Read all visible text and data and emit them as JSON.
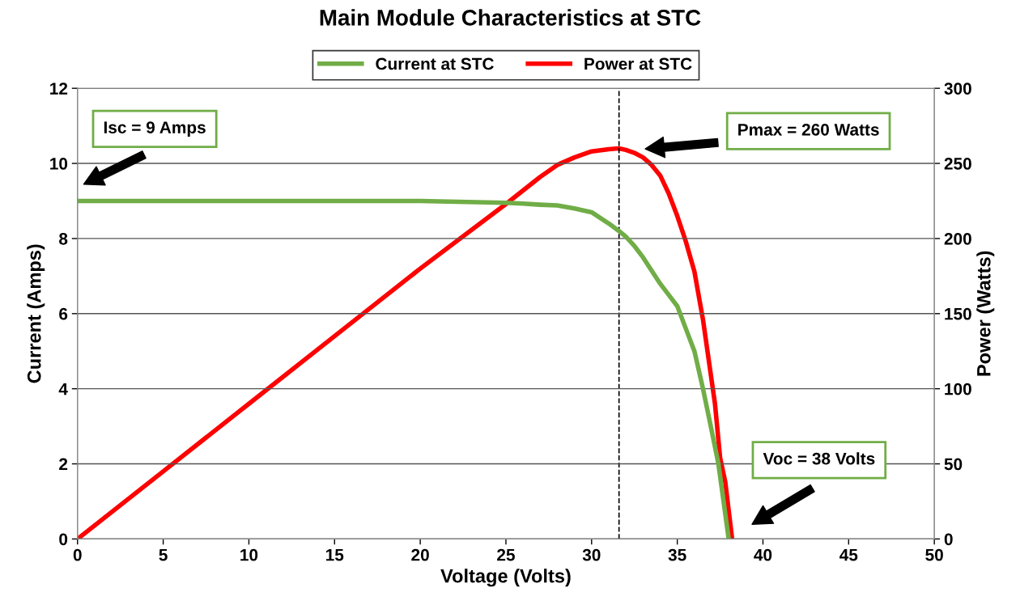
{
  "chart_data": {
    "type": "line",
    "title": "Main Module Characteristics at STC",
    "xlabel": "Voltage (Volts)",
    "ylabel": "Current (Amps)",
    "y2label": "Power (Watts)",
    "series": [
      {
        "name": "Current at STC",
        "color": "#70ad47",
        "x": [
          0,
          5,
          10,
          15,
          20,
          25,
          26,
          27,
          28,
          29,
          30,
          31,
          31.6,
          32,
          32.5,
          33,
          33.5,
          34,
          34.5,
          35,
          35.5,
          36,
          36.5,
          37,
          37.4,
          37.7,
          38
        ],
        "values": [
          9,
          9,
          9,
          9,
          9,
          8.95,
          8.93,
          8.9,
          8.88,
          8.8,
          8.7,
          8.4,
          8.2,
          8.05,
          7.8,
          7.5,
          7.15,
          6.8,
          6.5,
          6.2,
          5.6,
          5.0,
          4.0,
          2.9,
          2,
          1.0,
          0
        ]
      },
      {
        "name": "Power at STC",
        "color": "#ff0000",
        "axis": "y2",
        "x": [
          0,
          5,
          10,
          15,
          20,
          25,
          26,
          27,
          28,
          29,
          30,
          31,
          31.6,
          32,
          32.5,
          33,
          33.5,
          34,
          34.5,
          35,
          35.5,
          36,
          36.5,
          37,
          37.2,
          37.5,
          37.8,
          38.2
        ],
        "values": [
          0,
          45,
          90,
          135,
          180,
          223,
          232,
          241,
          249,
          254,
          258,
          259.5,
          260,
          259,
          257,
          254,
          249,
          242,
          230,
          215,
          198,
          178,
          146,
          106,
          90,
          54,
          38,
          0
        ]
      }
    ],
    "xlim": [
      0,
      50
    ],
    "xticks": [
      0,
      5,
      10,
      15,
      20,
      25,
      30,
      35,
      40,
      45,
      50
    ],
    "ylim": [
      0,
      12
    ],
    "yticks": [
      0,
      2,
      4,
      6,
      8,
      10,
      12
    ],
    "y2lim": [
      0,
      300
    ],
    "y2ticks": [
      0,
      50,
      100,
      150,
      200,
      250,
      300
    ],
    "grid": "y",
    "legend": "top",
    "marker": "none",
    "line_style": "solid",
    "ref_lines": [
      {
        "axis": "x",
        "value": 31.6,
        "color": "#000000",
        "line_style": "dashed"
      }
    ],
    "annotations": [
      "Isc = 9 Amps",
      "Pmax = 260 Watts",
      "Voc = 38 Volts"
    ]
  }
}
